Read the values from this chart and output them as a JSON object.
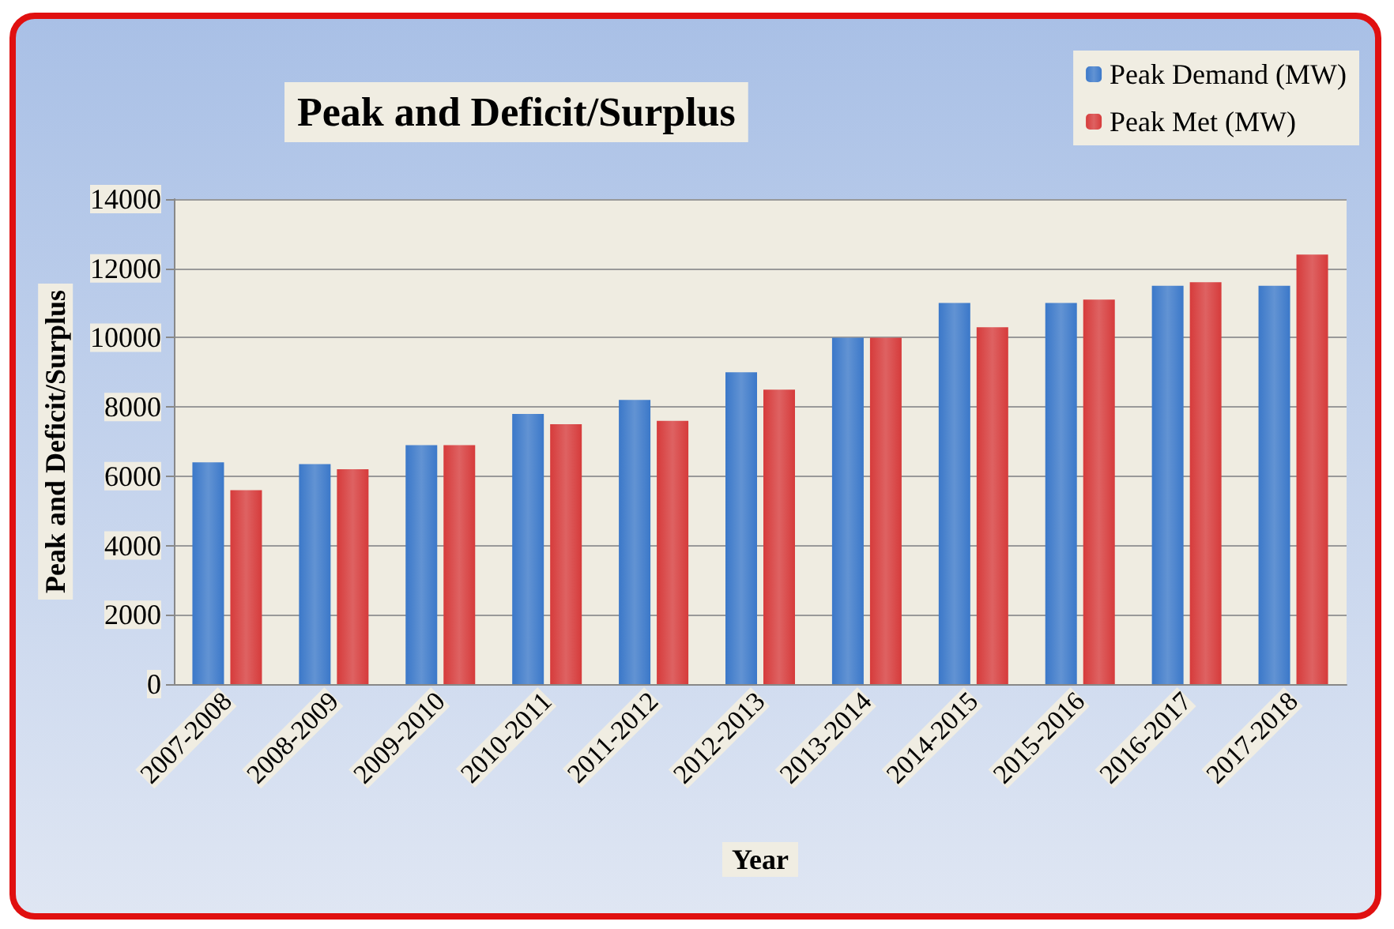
{
  "chart_data": {
    "type": "bar",
    "title": "Peak and Deficit/Surplus",
    "xlabel": "Year",
    "ylabel": "Peak and Deficit/Surplus",
    "categories": [
      "2007-2008",
      "2008-2009",
      "2009-2010",
      "2010-2011",
      "2011-2012",
      "2012-2013",
      "2013-2014",
      "2014-2015",
      "2015-2016",
      "2016-2017",
      "2017-2018"
    ],
    "series": [
      {
        "name": "Peak Demand (MW)",
        "color": "#3b78c9",
        "values": [
          6400,
          6350,
          6900,
          7800,
          8200,
          9000,
          10000,
          11000,
          11000,
          11500,
          11500
        ]
      },
      {
        "name": "Peak Met (MW)",
        "color": "#d63b3b",
        "values": [
          5600,
          6200,
          6900,
          7500,
          7600,
          8500,
          10000,
          10300,
          11100,
          11600,
          12400
        ]
      }
    ],
    "ylim": [
      0,
      14000
    ],
    "yticks": [
      0,
      2000,
      4000,
      6000,
      8000,
      10000,
      12000,
      14000
    ],
    "grid": "y",
    "legend": "top right"
  }
}
